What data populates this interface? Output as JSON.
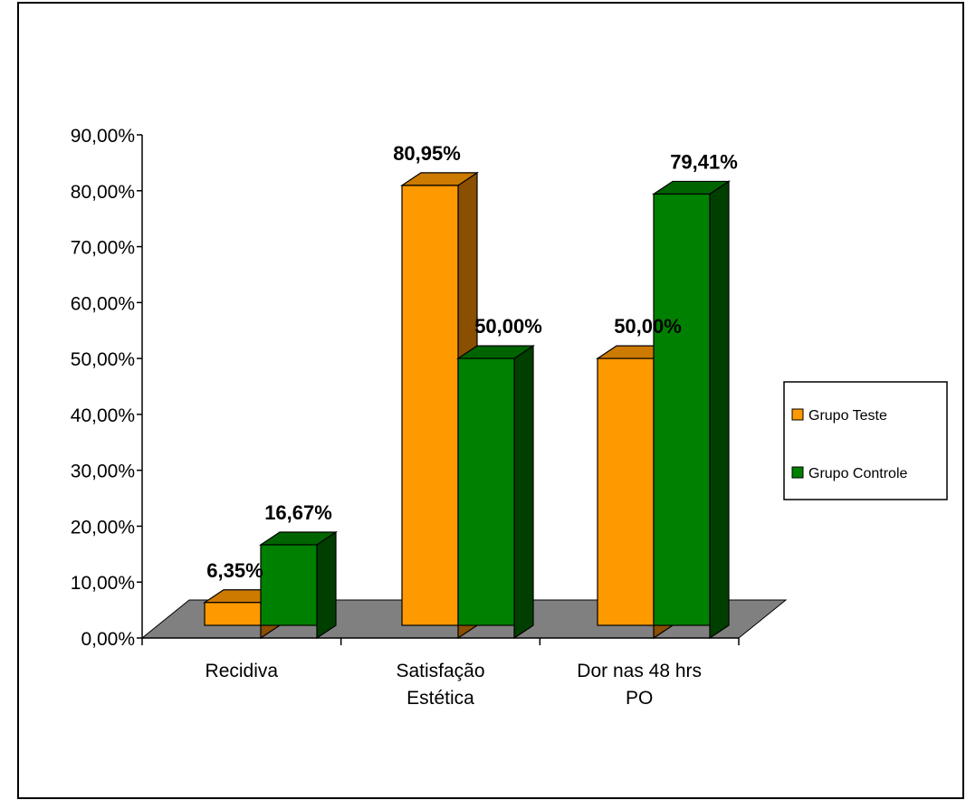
{
  "chart_data": {
    "type": "bar",
    "title": "",
    "xlabel": "",
    "ylabel": "",
    "categories": [
      "Recidiva",
      "Satisfação Estética",
      "Dor nas 48 hrs PO"
    ],
    "category_lines": [
      [
        "Recidiva"
      ],
      [
        "Satisfação",
        "Estética"
      ],
      [
        "Dor nas 48 hrs",
        "PO"
      ]
    ],
    "ylim": [
      0,
      90
    ],
    "yticks": [
      0,
      10,
      20,
      30,
      40,
      50,
      60,
      70,
      80,
      90
    ],
    "ytick_labels": [
      "0,00%",
      "10,00%",
      "20,00%",
      "30,00%",
      "40,00%",
      "50,00%",
      "60,00%",
      "70,00%",
      "80,00%",
      "90,00%"
    ],
    "series": [
      {
        "name": "Grupo Teste",
        "values": [
          6.35,
          80.95,
          50.0
        ],
        "labels": [
          "6,35%",
          "80,95%",
          "50,00%"
        ],
        "color": "#FF9900",
        "top_color": "#CC7A00",
        "side_color": "#8A4F00"
      },
      {
        "name": "Grupo Controle",
        "values": [
          16.67,
          50.0,
          79.41
        ],
        "labels": [
          "16,67%",
          "50,00%",
          "79,41%"
        ],
        "color": "#008000",
        "top_color": "#006400",
        "side_color": "#003F00"
      }
    ],
    "legend_position": "right",
    "three_d": true,
    "floor_color": "#808080",
    "grid": false
  }
}
